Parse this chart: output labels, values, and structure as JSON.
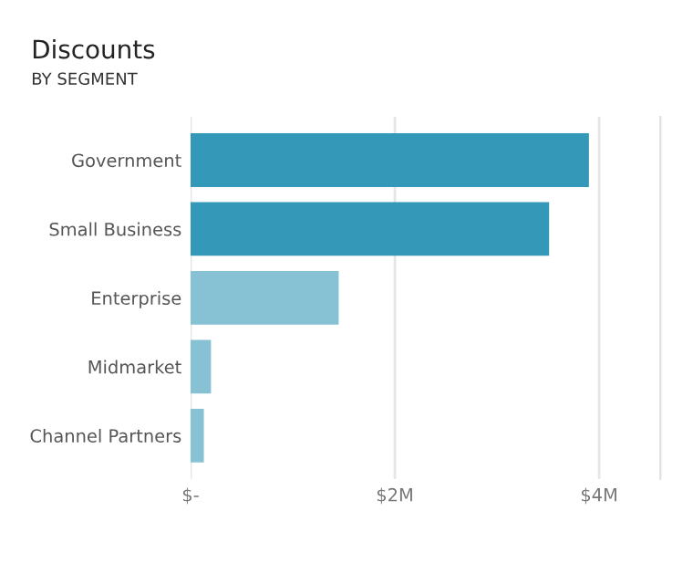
{
  "chart_data": {
    "type": "bar",
    "orientation": "horizontal",
    "title": "Discounts",
    "subtitle": "BY SEGMENT",
    "categories": [
      "Government",
      "Small Business",
      "Enterprise",
      "Midmarket",
      "Channel Partners"
    ],
    "values": [
      3.9,
      3.51,
      1.45,
      0.2,
      0.13
    ],
    "colors": [
      "#3498b9",
      "#3498b9",
      "#86c2d4",
      "#86c2d4",
      "#86c2d4"
    ],
    "xlim": [
      0,
      4.6
    ],
    "xticks": [
      {
        "value": 0,
        "label": "$-"
      },
      {
        "value": 2,
        "label": "$2M"
      },
      {
        "value": 4,
        "label": "$4M"
      }
    ],
    "grid": "x"
  }
}
